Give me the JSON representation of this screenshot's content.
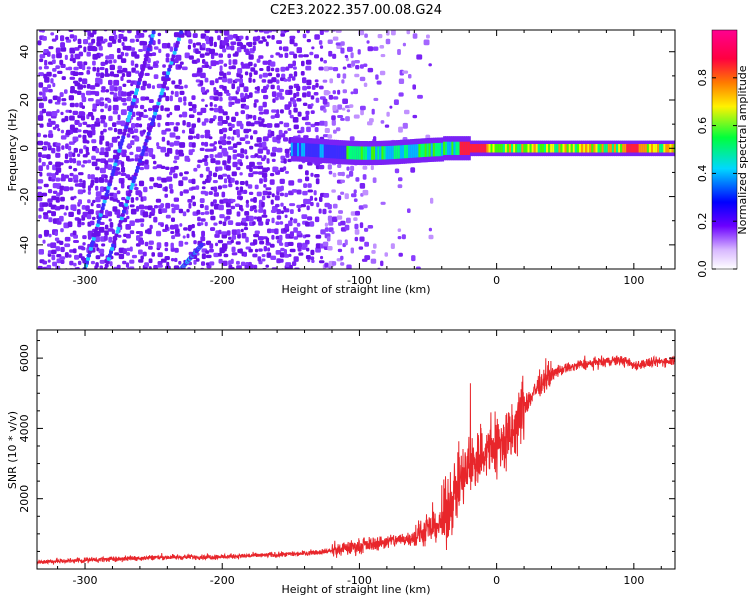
{
  "title": "C2E3.2022.357.00.08.G24",
  "colors": {
    "snr_line": "#e8262b",
    "ridge": "#5a10d8",
    "axis": "#000000",
    "background": "#ffffff"
  },
  "chart_data": [
    {
      "type": "heatmap",
      "name": "spectrogram",
      "xlabel": "Height of straight line (km)",
      "ylabel": "Frequency (Hz)",
      "xlim": [
        -335,
        130
      ],
      "ylim": [
        -50,
        49
      ],
      "xticks": [
        -300,
        -200,
        -100,
        0,
        100
      ],
      "yticks": [
        -40,
        -20,
        0,
        20,
        40
      ],
      "colorbar": {
        "label": "Normalized spectral amplitude",
        "range": [
          0,
          1
        ],
        "ticks": [
          "0.0",
          "0.2",
          "0.4",
          "0.6",
          "0.8"
        ],
        "colormap": [
          "#ffffff",
          "#6b00ff",
          "#0000ff",
          "#00d8ff",
          "#00ff3c",
          "#fff200",
          "#ff7a00",
          "#ff0040",
          "#ff0090"
        ]
      },
      "ridge_line": {
        "description_points_km_hz": [
          [
            -82,
            0
          ],
          [
            -60,
            -1.5
          ],
          [
            -30,
            -1
          ],
          [
            0,
            0
          ],
          [
            50,
            0
          ],
          [
            100,
            1
          ],
          [
            130,
            0
          ]
        ],
        "strongest_near_km": [
          -20,
          100
        ]
      },
      "diagonal_tracks": [
        {
          "x_km": [
            -300,
            -250
          ],
          "y_hz": [
            -50,
            48
          ]
        },
        {
          "x_km": [
            -285,
            -230
          ],
          "y_hz": [
            -50,
            48
          ]
        },
        {
          "x_km": [
            -230,
            -215
          ],
          "y_hz": [
            -50,
            -40
          ]
        }
      ]
    },
    {
      "type": "line",
      "name": "snr",
      "xlabel": "Height of straight line (km)",
      "ylabel": "SNR (10 * v/v)",
      "xlim": [
        -335,
        130
      ],
      "ylim": [
        0,
        6800
      ],
      "xticks": [
        -300,
        -200,
        -100,
        0,
        100
      ],
      "yticks": [
        2000,
        4000,
        6000
      ],
      "series": [
        {
          "name": "SNR",
          "x": [
            -335,
            -300,
            -250,
            -200,
            -150,
            -120,
            -100,
            -80,
            -60,
            -40,
            -30,
            -20,
            -10,
            0,
            10,
            20,
            30,
            40,
            50,
            60,
            70,
            80,
            90,
            100,
            110,
            120,
            130
          ],
          "y": [
            200,
            250,
            330,
            350,
            420,
            520,
            650,
            780,
            900,
            1300,
            2200,
            2900,
            3300,
            3500,
            3700,
            4600,
            5200,
            5550,
            5700,
            5800,
            5850,
            5900,
            5950,
            5800,
            5850,
            5900,
            5950
          ]
        }
      ]
    }
  ]
}
